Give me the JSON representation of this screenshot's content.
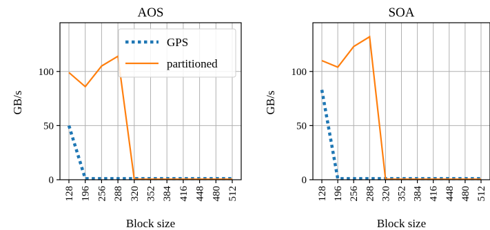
{
  "chart_data": [
    {
      "type": "line",
      "title": "AOS",
      "xlabel": "Block size",
      "ylabel": "GB/s",
      "x": [
        128,
        196,
        256,
        288,
        320,
        352,
        384,
        416,
        448,
        480,
        512
      ],
      "x_tick_labels": [
        "128",
        "196",
        "256",
        "288",
        "320",
        "352",
        "384",
        "416",
        "448",
        "480",
        "512"
      ],
      "ylim": [
        0,
        145
      ],
      "y_ticks": [
        0,
        50,
        100
      ],
      "grid": true,
      "legend": "top-right",
      "series": [
        {
          "name": "GPS",
          "style": "dotted",
          "color": "#1f77b4",
          "values": [
            50,
            1,
            1,
            1,
            1,
            1,
            1,
            1,
            1,
            1,
            1
          ]
        },
        {
          "name": "partitioned",
          "style": "solid",
          "color": "#ff7f0e",
          "values": [
            99,
            86,
            105,
            114,
            0.5,
            0.5,
            0.5,
            0.5,
            0.5,
            0.5,
            0.5
          ]
        }
      ]
    },
    {
      "type": "line",
      "title": "SOA",
      "xlabel": "Block size",
      "ylabel": "GB/s",
      "x": [
        128,
        196,
        256,
        288,
        320,
        352,
        384,
        416,
        448,
        480,
        512
      ],
      "x_tick_labels": [
        "128",
        "196",
        "256",
        "288",
        "320",
        "352",
        "384",
        "416",
        "448",
        "480",
        "512"
      ],
      "ylim": [
        0,
        145
      ],
      "y_ticks": [
        0,
        50,
        100
      ],
      "grid": true,
      "legend": "none",
      "series": [
        {
          "name": "GPS",
          "style": "dotted",
          "color": "#1f77b4",
          "values": [
            83,
            1,
            1,
            1,
            1,
            1,
            1,
            1,
            1,
            1,
            1
          ]
        },
        {
          "name": "partitioned",
          "style": "solid",
          "color": "#ff7f0e",
          "values": [
            110,
            104,
            123,
            132,
            0.5,
            0.5,
            0.5,
            0.5,
            0.5,
            0.5,
            0.5
          ]
        }
      ]
    }
  ]
}
